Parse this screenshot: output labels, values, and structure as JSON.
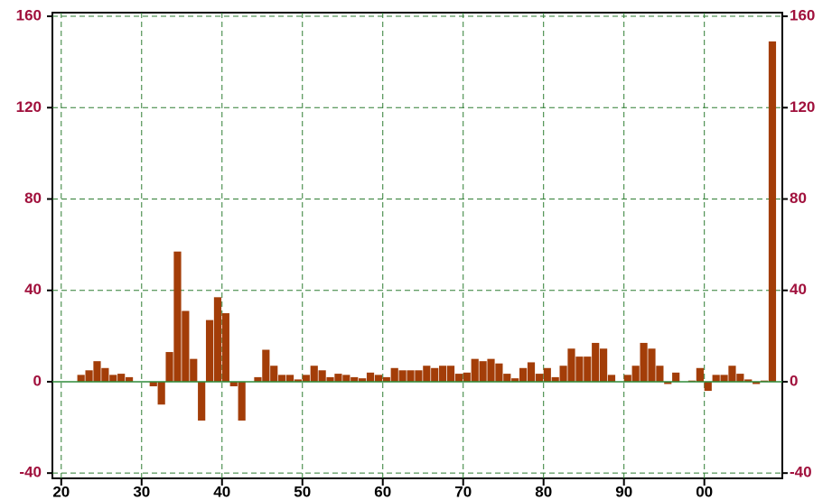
{
  "chart_data": {
    "type": "bar",
    "x": [
      1920,
      1921,
      1922,
      1923,
      1924,
      1925,
      1926,
      1927,
      1928,
      1929,
      1930,
      1931,
      1932,
      1933,
      1934,
      1935,
      1936,
      1937,
      1938,
      1939,
      1940,
      1941,
      1942,
      1943,
      1944,
      1945,
      1946,
      1947,
      1948,
      1949,
      1950,
      1951,
      1952,
      1953,
      1954,
      1955,
      1956,
      1957,
      1958,
      1959,
      1960,
      1961,
      1962,
      1963,
      1964,
      1965,
      1966,
      1967,
      1968,
      1969,
      1970,
      1971,
      1972,
      1973,
      1974,
      1975,
      1976,
      1977,
      1978,
      1979,
      1980,
      1981,
      1982,
      1983,
      1984,
      1985,
      1986,
      1987,
      1988,
      1989,
      1990,
      1991,
      1992,
      1993,
      1994,
      1995,
      1996,
      1997,
      1998,
      1999,
      2000,
      2001,
      2002,
      2003,
      2004,
      2005,
      2006,
      2007,
      2008
    ],
    "values": [
      0,
      0,
      3,
      5,
      9,
      6,
      3,
      3.5,
      2,
      0,
      0,
      -2,
      -10,
      13,
      57,
      31,
      10,
      -17,
      27,
      37,
      30,
      -2,
      -17,
      0,
      2,
      14,
      7,
      3,
      3,
      1,
      3,
      7,
      5,
      2,
      3.5,
      3,
      2,
      1.5,
      4,
      3,
      2,
      6,
      5,
      5,
      5,
      7,
      6,
      7,
      7,
      3.5,
      4,
      10,
      9,
      10,
      8,
      3.5,
      1.5,
      6,
      8.5,
      3.5,
      6,
      2,
      7,
      14.5,
      11,
      11,
      17,
      14.5,
      3,
      0,
      3,
      7,
      17,
      14.5,
      7,
      -1,
      4,
      0,
      0.5,
      6,
      -4,
      3,
      3,
      7,
      3.5,
      1,
      -1,
      0.5,
      149
    ],
    "color": "#a33d08",
    "xlim": [
      1918.9,
      2009.7
    ],
    "xticks": [
      {
        "value": 1920,
        "label": "20"
      },
      {
        "value": 1930,
        "label": "30"
      },
      {
        "value": 1940,
        "label": "40"
      },
      {
        "value": 1950,
        "label": "50"
      },
      {
        "value": 1960,
        "label": "60"
      },
      {
        "value": 1970,
        "label": "70"
      },
      {
        "value": 1980,
        "label": "80"
      },
      {
        "value": 1990,
        "label": "90"
      },
      {
        "value": 2000,
        "label": "00"
      }
    ],
    "ylim": [
      -42.3,
      161.6
    ],
    "yticks": [
      -40,
      0,
      40,
      80,
      120,
      160
    ],
    "y2lim": [
      -42.3,
      161.6
    ],
    "y2ticks": [
      -40,
      0,
      40,
      80,
      120,
      160
    ],
    "grid": true,
    "grid_color": "#2e7d32",
    "zero_line_color": "#2e8b3a"
  }
}
